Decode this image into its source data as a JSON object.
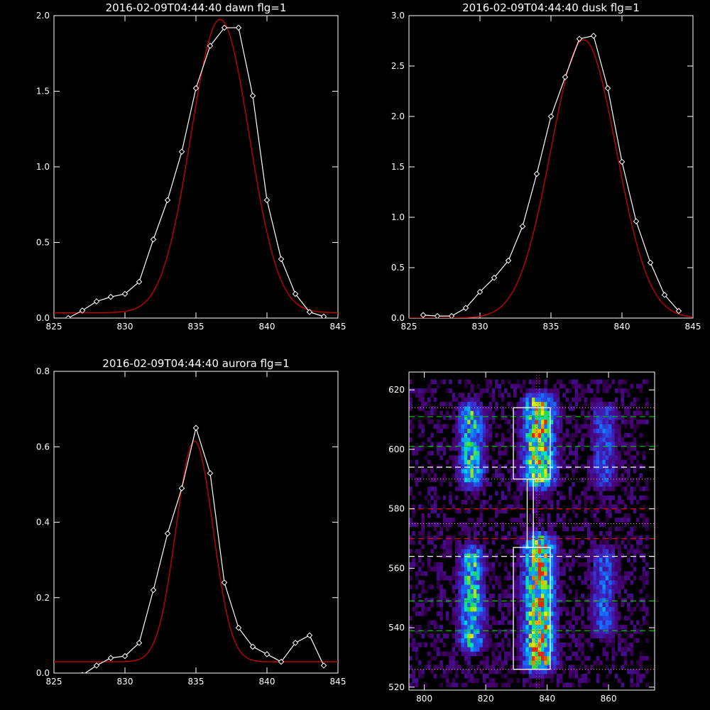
{
  "colors": {
    "background": "#000000",
    "axis": "#ffffff",
    "data_line": "#ffffff",
    "fit_line": "#d00000",
    "guide_green": "#00c000",
    "guide_red": "#e00000",
    "guide_white": "#ffffff",
    "guide_dotted": "#ff9999",
    "vertical_dotted": "#ff00ff"
  },
  "chart_data": [
    {
      "type": "line",
      "title": "2016-02-09T04:44:40 dawn flg=1",
      "xlim": [
        825,
        845
      ],
      "ylim": [
        0,
        2.0
      ],
      "xticks": [
        "825",
        "830",
        "835",
        "840",
        "845"
      ],
      "yticks": [
        "0.0",
        "0.5",
        "1.0",
        "1.5",
        "2.0"
      ],
      "xtick_values": [
        825,
        830,
        835,
        840,
        845
      ],
      "ytick_values": [
        0,
        0.5,
        1.0,
        1.5,
        2.0
      ],
      "series": [
        {
          "role": "data",
          "x": [
            826,
            827,
            828,
            829,
            830,
            831,
            832,
            833,
            834,
            835,
            836,
            837,
            838,
            839,
            840,
            841,
            842,
            843,
            844
          ],
          "y": [
            0.0,
            0.05,
            0.11,
            0.14,
            0.16,
            0.24,
            0.52,
            0.78,
            1.1,
            1.52,
            1.8,
            1.92,
            1.92,
            1.47,
            0.78,
            0.39,
            0.16,
            0.04,
            0.01
          ],
          "markers": true
        },
        {
          "role": "fit",
          "gaussian": {
            "amp": 1.94,
            "center": 836.7,
            "sigma": 2.05,
            "offset": 0.035
          },
          "x_range": [
            825,
            845
          ]
        }
      ]
    },
    {
      "type": "line",
      "title": "2016-02-09T04:44:40 dusk flg=1",
      "xlim": [
        825,
        845
      ],
      "ylim": [
        0,
        3.0
      ],
      "xticks": [
        "825",
        "830",
        "835",
        "840",
        "845"
      ],
      "yticks": [
        "0.0",
        "0.5",
        "1.0",
        "1.5",
        "2.0",
        "2.5",
        "3.0"
      ],
      "xtick_values": [
        825,
        830,
        835,
        840,
        845
      ],
      "ytick_values": [
        0,
        0.5,
        1.0,
        1.5,
        2.0,
        2.5,
        3.0
      ],
      "series": [
        {
          "role": "data",
          "x": [
            826,
            827,
            828,
            829,
            830,
            831,
            832,
            833,
            834,
            835,
            836,
            837,
            838,
            839,
            840,
            841,
            842,
            843,
            844
          ],
          "y": [
            0.03,
            0.02,
            0.02,
            0.1,
            0.26,
            0.4,
            0.57,
            0.91,
            1.43,
            2.0,
            2.39,
            2.77,
            2.8,
            2.28,
            1.55,
            0.96,
            0.55,
            0.23,
            0.07
          ],
          "markers": true
        },
        {
          "role": "fit",
          "gaussian": {
            "amp": 2.76,
            "center": 837.3,
            "sigma": 2.3,
            "offset": 0.0
          },
          "x_range": [
            825,
            845
          ]
        }
      ]
    },
    {
      "type": "line",
      "title": "2016-02-09T04:44:40 aurora flg=1",
      "xlim": [
        825,
        845
      ],
      "ylim": [
        0,
        0.8
      ],
      "xticks": [
        "825",
        "830",
        "835",
        "840",
        "845"
      ],
      "yticks": [
        "0.0",
        "0.2",
        "0.4",
        "0.6",
        "0.8"
      ],
      "xtick_values": [
        825,
        830,
        835,
        840,
        845
      ],
      "ytick_values": [
        0,
        0.2,
        0.4,
        0.6,
        0.8
      ],
      "series": [
        {
          "role": "data",
          "x": [
            826,
            827,
            828,
            829,
            830,
            831,
            832,
            833,
            834,
            835,
            836,
            837,
            838,
            839,
            840,
            841,
            842,
            843,
            844
          ],
          "y": [
            -0.01,
            -0.005,
            0.02,
            0.04,
            0.045,
            0.08,
            0.22,
            0.37,
            0.49,
            0.65,
            0.53,
            0.24,
            0.12,
            0.07,
            0.05,
            0.03,
            0.08,
            0.1,
            0.02
          ],
          "markers": true
        },
        {
          "role": "fit",
          "gaussian": {
            "amp": 0.585,
            "center": 834.9,
            "sigma": 1.3,
            "offset": 0.03
          },
          "x_range": [
            825,
            845
          ]
        }
      ]
    },
    {
      "type": "heatmap",
      "title": "",
      "xlim": [
        795,
        875
      ],
      "ylim": [
        519,
        626
      ],
      "xticks": [
        "800",
        "820",
        "840",
        "860"
      ],
      "yticks": [
        "520",
        "540",
        "560",
        "580",
        "600",
        "620"
      ],
      "xtick_values": [
        800,
        820,
        840,
        860
      ],
      "ytick_values": [
        520,
        540,
        560,
        580,
        600,
        620
      ],
      "colormap": "black-purple-blue-cyan-green-yellow-red",
      "emission_bands": [
        {
          "x_center": 815,
          "x_width": 5,
          "y_ranges": [
            [
              590,
              611
            ],
            [
              535,
              563
            ]
          ],
          "peak": 0.72
        },
        {
          "x_center": 837,
          "x_width": 6,
          "y_ranges": [
            [
              590,
              614
            ],
            [
              528,
              567
            ]
          ],
          "peak": 1.0
        },
        {
          "x_center": 858,
          "x_width": 5,
          "y_ranges": [
            [
              590,
              611
            ],
            [
              540,
              563
            ]
          ],
          "peak": 0.45
        }
      ],
      "dotted_vertical_x": 837,
      "horizontal_guides": [
        {
          "y": 611,
          "style": "green-dashed"
        },
        {
          "y": 601,
          "style": "green-dashed"
        },
        {
          "y": 594,
          "style": "white-dashed"
        },
        {
          "y": 580,
          "style": "red-dashed"
        },
        {
          "y": 570,
          "style": "red-dashed"
        },
        {
          "y": 564,
          "style": "white-dashed"
        },
        {
          "y": 549,
          "style": "green-dashed"
        },
        {
          "y": 539,
          "style": "green-dashed"
        },
        {
          "y": 614,
          "style": "dotted"
        },
        {
          "y": 590,
          "style": "dotted"
        },
        {
          "y": 575,
          "style": "dotted"
        },
        {
          "y": 526,
          "style": "dotted"
        }
      ],
      "white_boxes": [
        {
          "x": [
            829,
            841
          ],
          "y": [
            590,
            614
          ]
        },
        {
          "x": [
            829,
            841
          ],
          "y": [
            526,
            567
          ]
        }
      ]
    }
  ]
}
